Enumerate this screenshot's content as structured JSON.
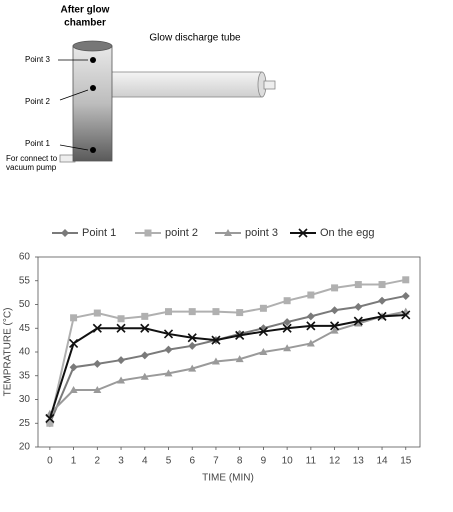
{
  "diagram": {
    "chamber_label": [
      "After glow",
      "chamber"
    ],
    "tube_label": "Glow discharge tube",
    "point_labels": [
      "Point 3",
      "Point 2",
      "Point 1"
    ],
    "pump_label": [
      "For connect to",
      "vacuum pump"
    ]
  },
  "chart_data": {
    "type": "line",
    "xlabel": "TIME (MIN)",
    "ylabel": "TEMPRATURE (°C)",
    "x": [
      0,
      1,
      2,
      3,
      4,
      5,
      6,
      7,
      8,
      9,
      10,
      11,
      12,
      13,
      14,
      15
    ],
    "series": [
      {
        "name": "Point 1",
        "color": "#7a7a7a",
        "marker": "diamond",
        "values": [
          25,
          36.8,
          37.5,
          38.3,
          39.3,
          40.5,
          41.3,
          42.5,
          43.8,
          45,
          46.3,
          47.5,
          48.8,
          49.5,
          50.8,
          51.8
        ]
      },
      {
        "name": "point 2",
        "color": "#b0b0b0",
        "marker": "square",
        "values": [
          25,
          47.2,
          48.2,
          47,
          47.5,
          48.5,
          48.5,
          48.5,
          48.3,
          49.2,
          50.8,
          52,
          53.5,
          54.2,
          54.2,
          55.2
        ]
      },
      {
        "name": "point 3",
        "color": "#9a9a9a",
        "marker": "triangle",
        "values": [
          27,
          32,
          32,
          34,
          34.8,
          35.5,
          36.5,
          38,
          38.5,
          40,
          40.8,
          41.8,
          44.5,
          46,
          47.5,
          48.5
        ]
      },
      {
        "name": "On the egg",
        "color": "#111111",
        "marker": "x",
        "values": [
          26,
          41.8,
          45,
          45,
          45,
          43.8,
          43,
          42.5,
          43.5,
          44.3,
          45,
          45.5,
          45.5,
          46.5,
          47.5,
          47.8
        ]
      }
    ],
    "xlim": [
      -0.5,
      15.6
    ],
    "ylim": [
      20,
      60
    ],
    "xticks": [
      0,
      1,
      2,
      3,
      4,
      5,
      6,
      7,
      8,
      9,
      10,
      11,
      12,
      13,
      14,
      15
    ],
    "yticks": [
      20,
      25,
      30,
      35,
      40,
      45,
      50,
      55,
      60
    ],
    "legend": "top"
  }
}
